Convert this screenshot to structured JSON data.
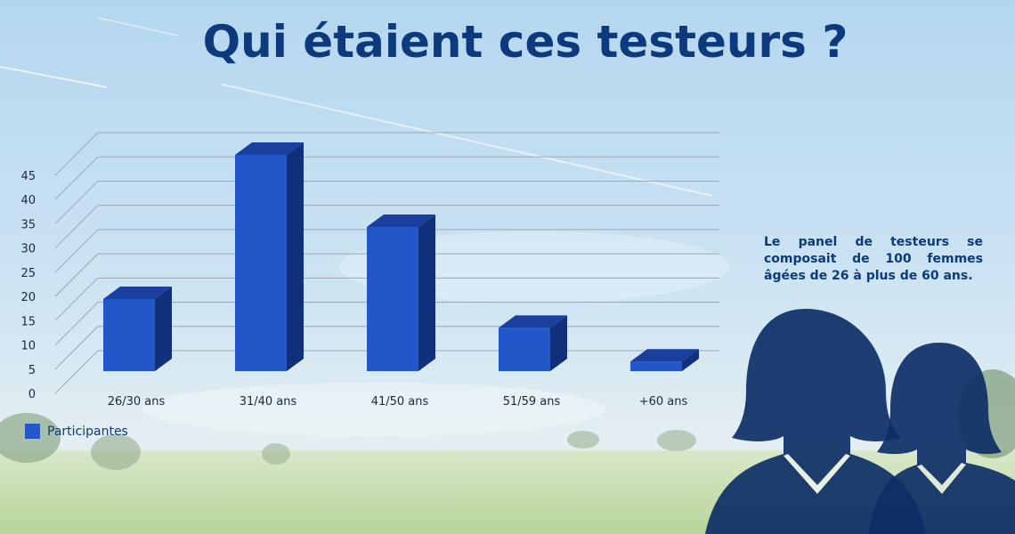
{
  "title": "Qui étaient ces testeurs ?",
  "info_text": "Le panel de testeurs se composait de 100 femmes âgées de 26 à plus de 60 ans.",
  "colors": {
    "bar_front": "#2256c9",
    "bar_top": "#1a3f9e",
    "bar_side": "#10307c",
    "title": "#0d3a7c",
    "silhouette": "#0d2f66"
  },
  "chart_data": {
    "type": "bar",
    "categories": [
      "26/30 ans",
      "31/40 ans",
      "41/50 ans",
      "51/59 ans",
      "+60 ans"
    ],
    "series": [
      {
        "name": "Participantes",
        "values": [
          15,
          45,
          30,
          9,
          2
        ]
      }
    ],
    "y_ticks": [
      "0",
      "5",
      "10",
      "15",
      "20",
      "25",
      "30",
      "35",
      "40",
      "45"
    ],
    "ylim": [
      0,
      45
    ],
    "grid": true,
    "legend": "bottom-left"
  }
}
